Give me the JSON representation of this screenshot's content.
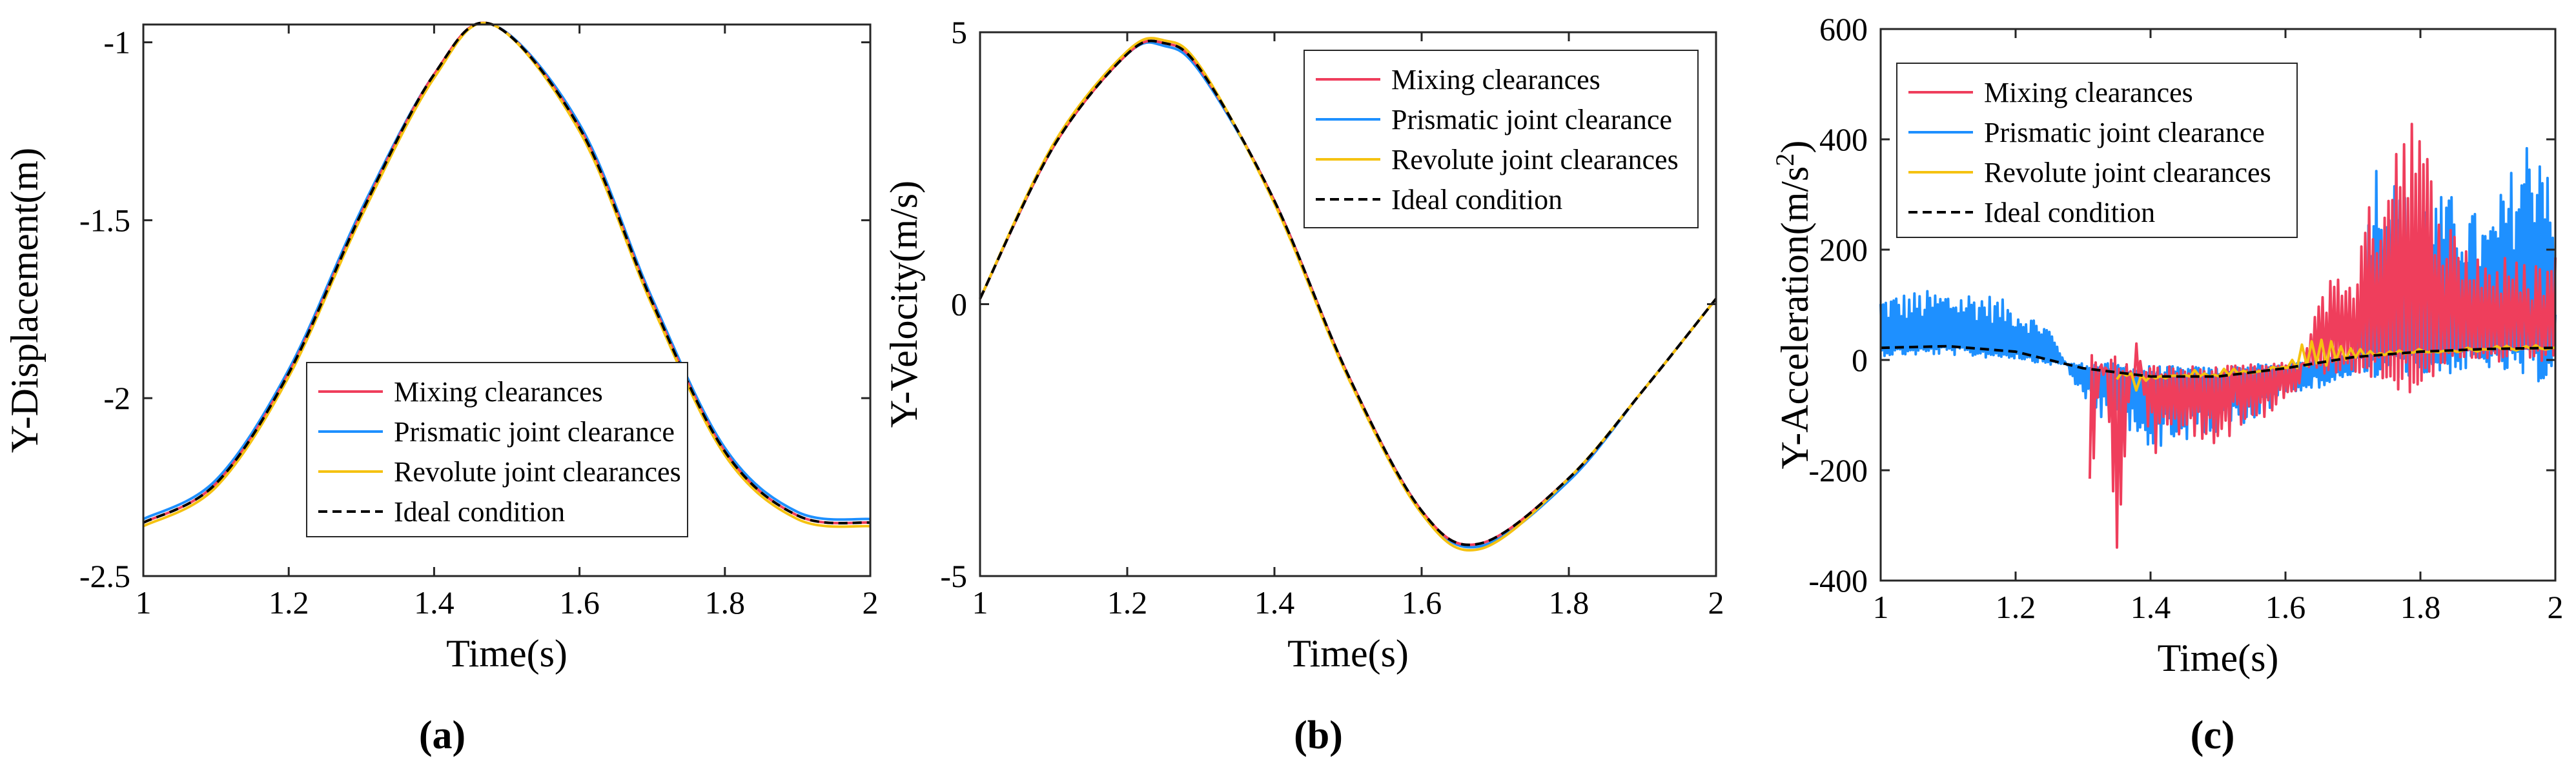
{
  "colors": {
    "mixing": "#ef3e5c",
    "prismatic": "#1e90ff",
    "revolute": "#f5c211",
    "ideal": "#000000",
    "axis": "#262626"
  },
  "chart_data": [
    {
      "type": "line",
      "panel_label": "(a)",
      "xlabel": "Time(s)",
      "ylabel": "Y-Displacement(m)",
      "xlim": [
        1,
        2
      ],
      "ylim": [
        -2.5,
        -0.95
      ],
      "xticks": [
        1,
        1.2,
        1.4,
        1.6,
        1.8,
        2
      ],
      "xtick_labels": [
        "1",
        "1.2",
        "1.4",
        "1.6",
        "1.8",
        "2"
      ],
      "yticks": [
        -2.5,
        -2,
        -1.5,
        -1
      ],
      "ytick_labels": [
        "-2.5",
        "-2",
        "-1.5",
        "-1"
      ],
      "grid": false,
      "legend_position": "lower-center",
      "legend": [
        "Mixing clearances",
        "Prismatic joint clearance",
        "Revolute joint clearances",
        "Ideal condition"
      ],
      "series": [
        {
          "name": "Mixing clearances",
          "x": [
            1,
            1.1,
            1.2,
            1.3,
            1.4,
            1.48,
            1.6,
            1.7,
            1.8,
            1.9,
            2
          ],
          "y": [
            -2.35,
            -2.24,
            -1.93,
            -1.48,
            -1.09,
            -0.95,
            -1.24,
            -1.73,
            -2.15,
            -2.33,
            -2.35
          ]
        },
        {
          "name": "Prismatic joint clearance",
          "x": [
            1,
            1.1,
            1.2,
            1.3,
            1.4,
            1.48,
            1.6,
            1.7,
            1.8,
            1.9,
            2
          ],
          "y": [
            -2.34,
            -2.23,
            -1.92,
            -1.47,
            -1.09,
            -0.95,
            -1.23,
            -1.72,
            -2.14,
            -2.32,
            -2.34
          ]
        },
        {
          "name": "Revolute joint clearances",
          "x": [
            1,
            1.1,
            1.2,
            1.3,
            1.4,
            1.48,
            1.6,
            1.7,
            1.8,
            1.9,
            2
          ],
          "y": [
            -2.36,
            -2.25,
            -1.94,
            -1.49,
            -1.1,
            -0.95,
            -1.25,
            -1.74,
            -2.16,
            -2.34,
            -2.36
          ]
        },
        {
          "name": "Ideal condition",
          "x": [
            1,
            1.1,
            1.2,
            1.3,
            1.4,
            1.48,
            1.6,
            1.7,
            1.8,
            1.9,
            2
          ],
          "y": [
            -2.35,
            -2.24,
            -1.93,
            -1.48,
            -1.09,
            -0.95,
            -1.24,
            -1.73,
            -2.15,
            -2.33,
            -2.35
          ]
        }
      ]
    },
    {
      "type": "line",
      "panel_label": "(b)",
      "xlabel": "Time(s)",
      "ylabel": "Y-Velocity(m/s)",
      "xlim": [
        1,
        2
      ],
      "ylim": [
        -5,
        5
      ],
      "xticks": [
        1,
        1.2,
        1.4,
        1.6,
        1.8,
        2
      ],
      "xtick_labels": [
        "1",
        "1.2",
        "1.4",
        "1.6",
        "1.8",
        "2"
      ],
      "yticks": [
        -5,
        0,
        5
      ],
      "ytick_labels": [
        "-5",
        "0",
        "5"
      ],
      "grid": false,
      "legend_position": "top-right",
      "legend": [
        "Mixing clearances",
        "Prismatic joint clearance",
        "Revolute joint clearances",
        "Ideal condition"
      ],
      "series": [
        {
          "name": "Mixing clearances",
          "x": [
            1,
            1.1,
            1.2,
            1.25,
            1.3,
            1.4,
            1.5,
            1.6,
            1.68,
            1.8,
            1.9,
            2
          ],
          "y": [
            0.1,
            2.9,
            4.6,
            4.8,
            4.3,
            1.9,
            -1.3,
            -3.8,
            -4.4,
            -3.2,
            -1.6,
            0.1
          ]
        },
        {
          "name": "Prismatic joint clearance",
          "x": [
            1,
            1.1,
            1.2,
            1.25,
            1.3,
            1.4,
            1.5,
            1.6,
            1.68,
            1.8,
            1.9,
            2
          ],
          "y": [
            0.1,
            2.9,
            4.6,
            4.75,
            4.25,
            1.9,
            -1.3,
            -3.8,
            -4.45,
            -3.25,
            -1.6,
            0.1
          ]
        },
        {
          "name": "Revolute joint clearances",
          "x": [
            1,
            1.1,
            1.2,
            1.25,
            1.3,
            1.4,
            1.5,
            1.6,
            1.68,
            1.8,
            1.9,
            2
          ],
          "y": [
            0.1,
            2.95,
            4.65,
            4.85,
            4.35,
            1.85,
            -1.35,
            -3.85,
            -4.5,
            -3.2,
            -1.6,
            0.1
          ]
        },
        {
          "name": "Ideal condition",
          "x": [
            1,
            1.1,
            1.2,
            1.25,
            1.3,
            1.4,
            1.5,
            1.6,
            1.68,
            1.8,
            1.9,
            2
          ],
          "y": [
            0.1,
            2.9,
            4.6,
            4.8,
            4.3,
            1.9,
            -1.3,
            -3.8,
            -4.4,
            -3.2,
            -1.6,
            0.1
          ]
        }
      ]
    },
    {
      "type": "line",
      "panel_label": "(c)",
      "xlabel": "Time(s)",
      "ylabel": "Y-Acceleration(m/s",
      "ylabel_superscript": "2",
      "ylabel_suffix": ")",
      "xlim": [
        1,
        2
      ],
      "ylim": [
        -400,
        600
      ],
      "xticks": [
        1,
        1.2,
        1.4,
        1.6,
        1.8,
        2
      ],
      "xtick_labels": [
        "1",
        "1.2",
        "1.4",
        "1.6",
        "1.8",
        "2"
      ],
      "yticks": [
        -400,
        -200,
        0,
        200,
        400,
        600
      ],
      "ytick_labels": [
        "-400",
        "-200",
        "0",
        "200",
        "400",
        "600"
      ],
      "grid": false,
      "legend_position": "top-left",
      "legend": [
        "Mixing clearances",
        "Prismatic joint clearance",
        "Revolute joint clearances",
        "Ideal condition"
      ],
      "series": [
        {
          "name": "Prismatic joint clearance",
          "x": [
            1,
            1.05,
            1.1,
            1.15,
            1.2,
            1.25,
            1.3,
            1.35,
            1.4,
            1.45,
            1.5,
            1.55,
            1.6,
            1.65,
            1.7,
            1.73,
            1.78,
            1.85,
            1.9,
            1.96,
            1.99,
            2
          ],
          "y": [
            120,
            125,
            128,
            125,
            100,
            60,
            -80,
            -130,
            -160,
            -150,
            -140,
            -120,
            -60,
            -50,
            -30,
            380,
            300,
            300,
            250,
            420,
            440,
            100
          ]
        },
        {
          "name": "Mixing clearances",
          "x": [
            1.31,
            1.33,
            1.35,
            1.38,
            1.4,
            1.45,
            1.5,
            1.55,
            1.6,
            1.62,
            1.65,
            1.7,
            1.75,
            1.78,
            1.8,
            1.85,
            1.9,
            1.95,
            2
          ],
          "y": [
            -340,
            40,
            -370,
            50,
            -170,
            -160,
            -150,
            -120,
            -80,
            -50,
            140,
            180,
            390,
            530,
            420,
            240,
            200,
            180,
            200
          ]
        },
        {
          "name": "Revolute joint clearances",
          "x": [
            1.35,
            1.38,
            1.4,
            1.45,
            1.5,
            1.6,
            1.64,
            1.66,
            1.7,
            1.8,
            1.9,
            2
          ],
          "y": [
            -40,
            -60,
            -40,
            -35,
            -30,
            -20,
            60,
            50,
            20,
            20,
            25,
            30
          ]
        },
        {
          "name": "Ideal condition",
          "x": [
            1,
            1.1,
            1.2,
            1.3,
            1.4,
            1.5,
            1.6,
            1.7,
            1.8,
            1.9,
            2
          ],
          "y": [
            22,
            25,
            15,
            -15,
            -30,
            -30,
            -15,
            5,
            15,
            20,
            22
          ]
        }
      ]
    }
  ]
}
